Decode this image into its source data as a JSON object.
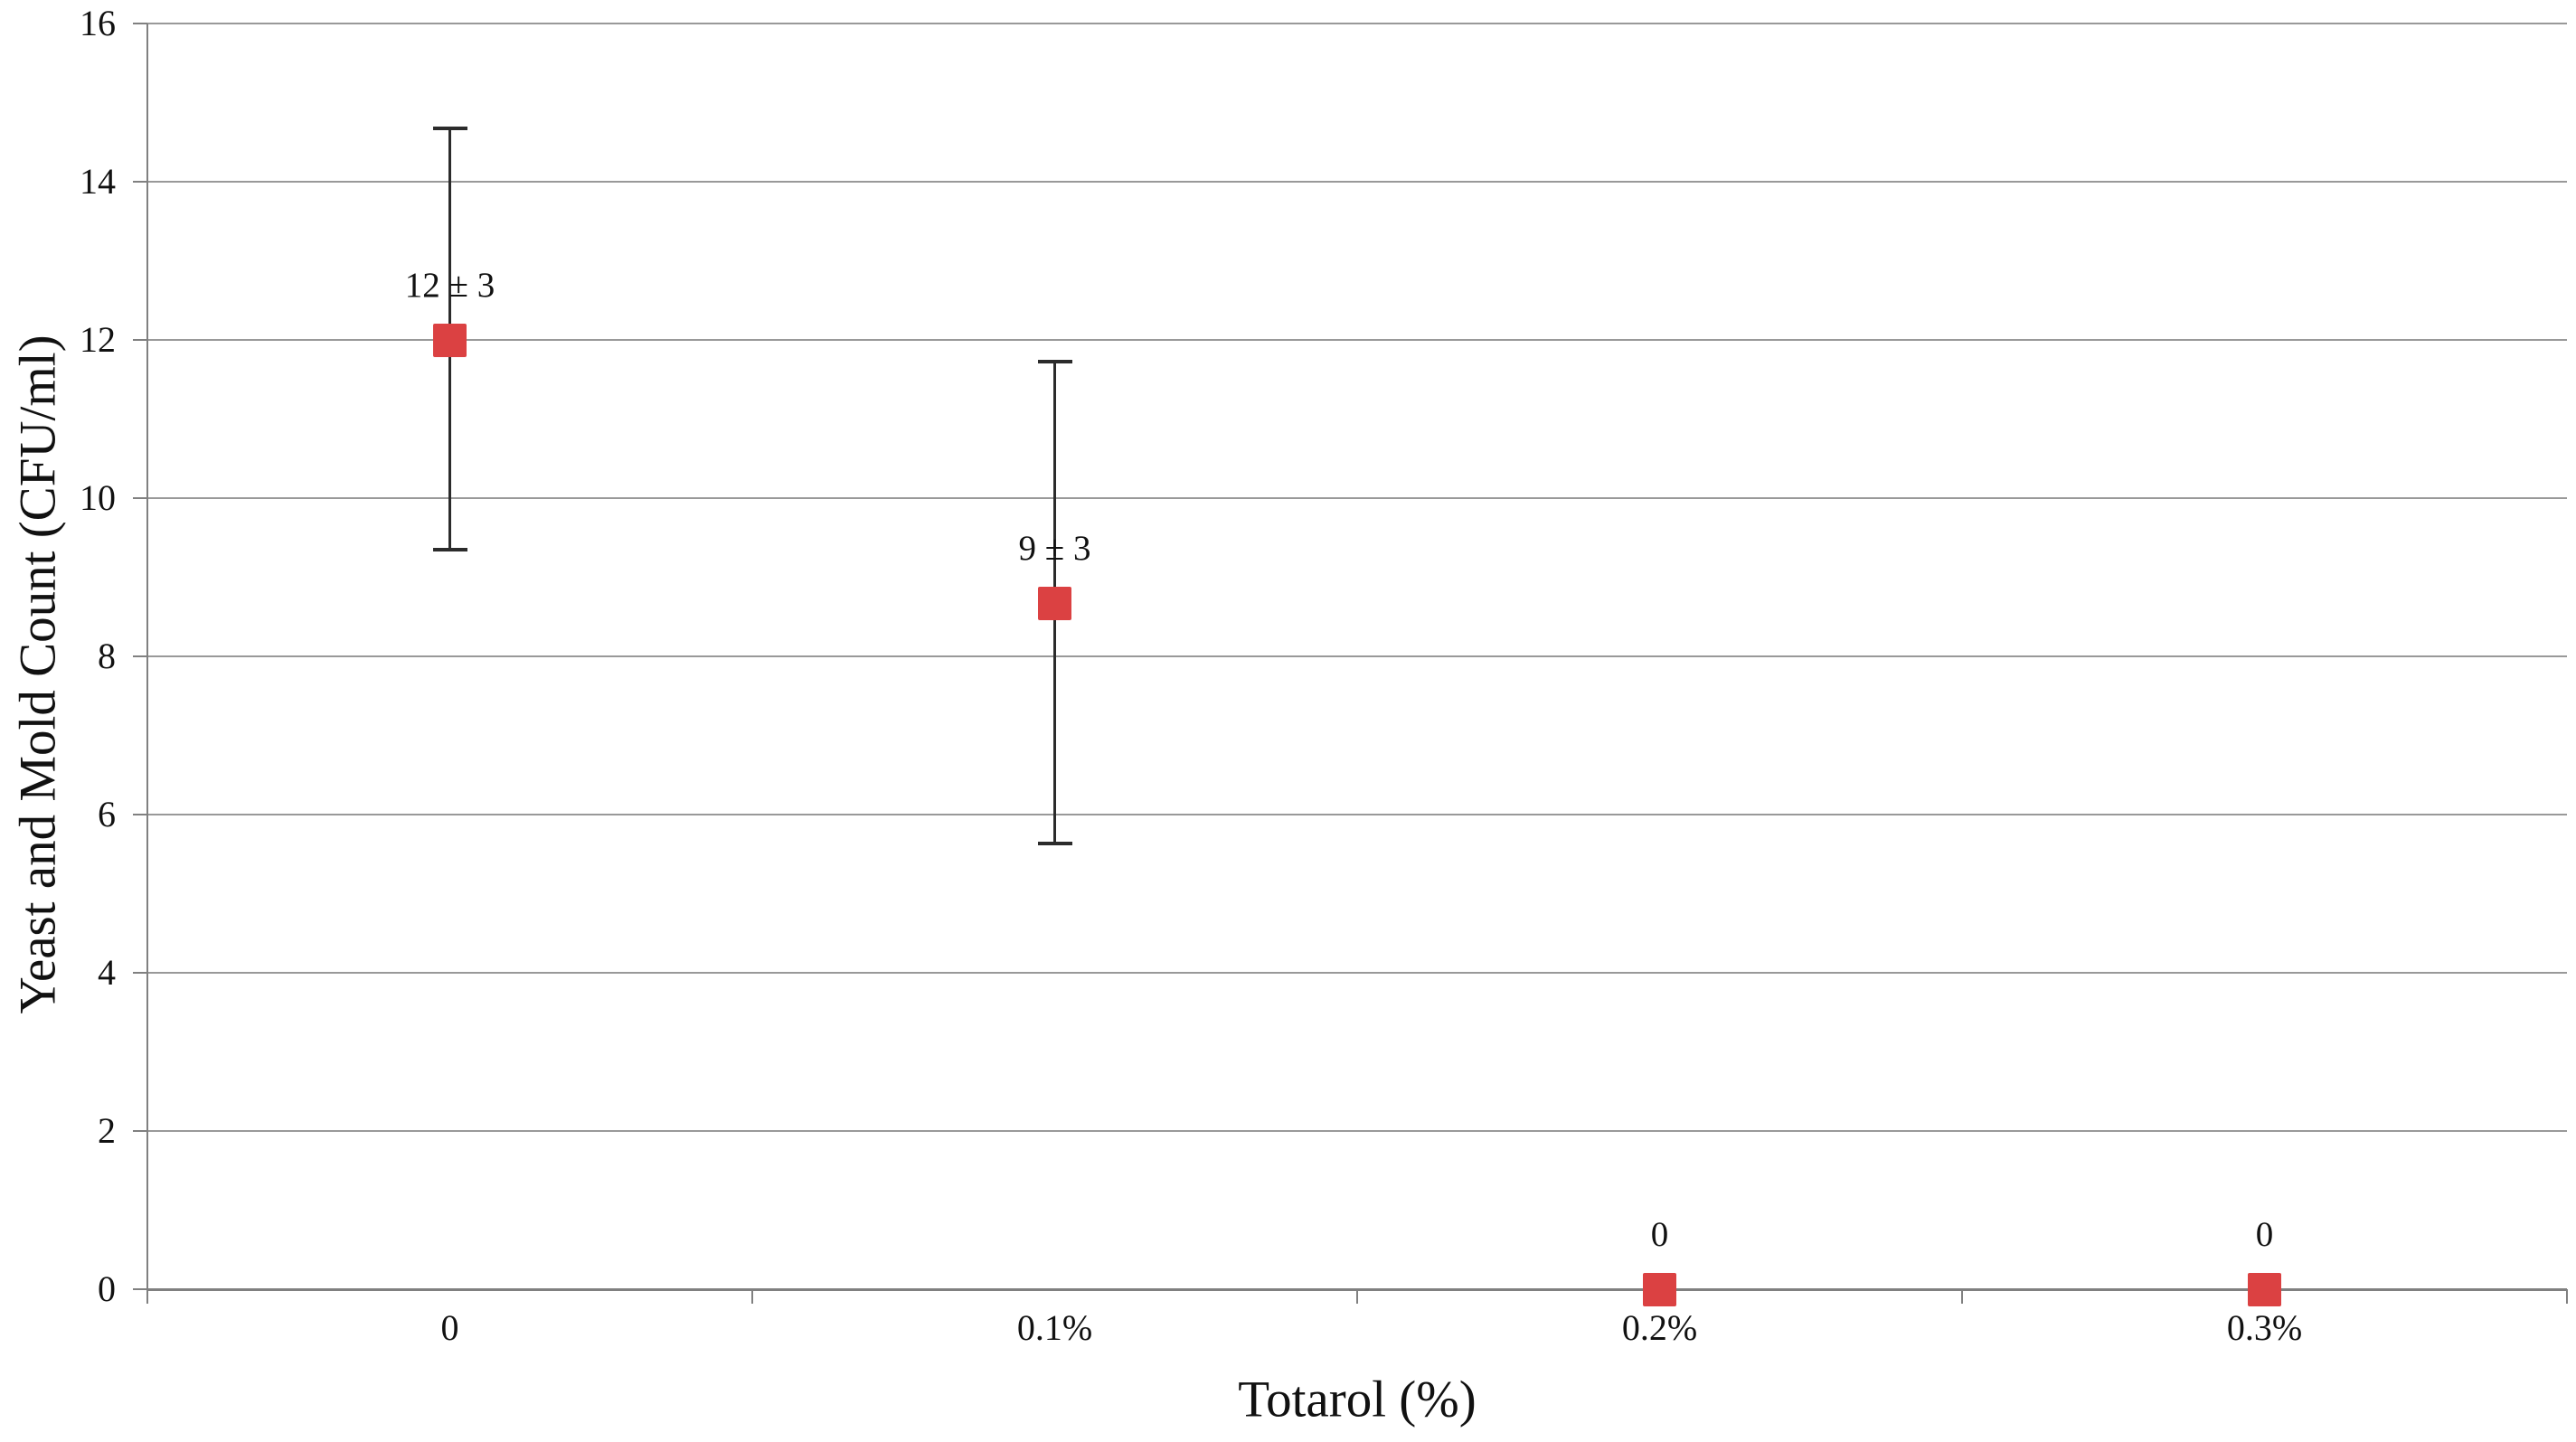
{
  "chart_data": {
    "type": "scatter",
    "title": "",
    "xlabel": "Totarol (%)",
    "ylabel": "Yeast and Mold Count (CFU/ml)",
    "categories": [
      "0",
      "0.1%",
      "0.2%",
      "0.3%"
    ],
    "ylim": [
      0,
      16
    ],
    "yticks": [
      0,
      2,
      4,
      6,
      8,
      10,
      12,
      14,
      16
    ],
    "ytick_labels": [
      "0",
      "2",
      "4",
      "6",
      "8",
      "10",
      "12",
      "14",
      "16"
    ],
    "grid": "horizontal",
    "legend": "none",
    "series": [
      {
        "name": "Yeast and Mold Count",
        "marker": "square",
        "points": [
          {
            "category": "0",
            "y": 12.0,
            "err_up": 2.67,
            "err_down": 2.65,
            "label": "12 ± 3"
          },
          {
            "category": "0.1%",
            "y": 8.67,
            "err_up": 3.06,
            "err_down": 3.04,
            "label": "9 ± 3"
          },
          {
            "category": "0.2%",
            "y": 0,
            "err_up": 0,
            "err_down": 0,
            "label": "0"
          },
          {
            "category": "0.3%",
            "y": 0,
            "err_up": 0,
            "err_down": 0,
            "label": "0"
          }
        ]
      }
    ],
    "colors": {
      "marker": "#db4142",
      "error_bar": "#2b2b2b",
      "gridline": "#999999",
      "axis": "#808080",
      "text": "#111111"
    }
  }
}
